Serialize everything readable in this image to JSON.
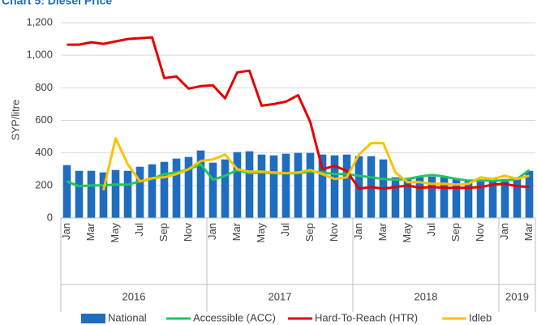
{
  "chart_data": {
    "type": "bar_line",
    "title": "Chart 5: Diesel Price",
    "y_label": "SYP/litre",
    "categories": [
      "Jan",
      null,
      "Mar",
      null,
      "May",
      null,
      "Jul",
      null,
      "Sep",
      null,
      "Nov",
      null,
      "Jan",
      null,
      "Mar",
      null,
      "May",
      null,
      "Jul",
      null,
      "Sep",
      null,
      "Nov",
      null,
      "Jan",
      null,
      "Mar",
      null,
      "May",
      null,
      "Jul",
      null,
      "Sep",
      null,
      "Nov",
      null,
      "Jan",
      null,
      "Mar"
    ],
    "years": [
      "2016",
      "2017",
      "2018",
      "2019"
    ],
    "ylim": [
      0,
      1200
    ],
    "yticks": [
      0,
      200,
      400,
      600,
      800,
      {
        "value": 1000,
        "label": "1,000"
      },
      {
        "value": 1200,
        "label": "1,200"
      }
    ],
    "grid": true,
    "legend": "bottom",
    "series": [
      {
        "name": "National",
        "kind": "bar",
        "color": "#1f6dbf",
        "values": [
          325,
          290,
          290,
          280,
          295,
          290,
          315,
          330,
          345,
          365,
          375,
          415,
          340,
          360,
          405,
          410,
          390,
          385,
          395,
          400,
          400,
          390,
          385,
          390,
          380,
          380,
          360,
          250,
          240,
          250,
          255,
          250,
          240,
          235,
          230,
          240,
          240,
          250,
          290
        ]
      },
      {
        "name": "Accessible (ACC)",
        "kind": "line",
        "color": "#22c55e",
        "values": [
          225,
          195,
          200,
          200,
          205,
          205,
          225,
          240,
          270,
          280,
          300,
          330,
          235,
          260,
          295,
          275,
          280,
          275,
          275,
          275,
          285,
          280,
          270,
          270,
          260,
          250,
          240,
          235,
          240,
          255,
          265,
          255,
          240,
          230,
          230,
          230,
          230,
          240,
          295
        ]
      },
      {
        "name": "Hard-To-Reach (HTR)",
        "kind": "line",
        "color": "#e60000",
        "values": [
          1065,
          1065,
          1080,
          1070,
          1085,
          1100,
          1105,
          1110,
          860,
          870,
          795,
          810,
          815,
          735,
          895,
          905,
          690,
          700,
          715,
          755,
          590,
          300,
          320,
          290,
          180,
          190,
          180,
          190,
          200,
          185,
          190,
          185,
          185,
          185,
          190,
          205,
          210,
          195,
          190
        ]
      },
      {
        "name": "Idleb",
        "kind": "line",
        "color": "#ffc000",
        "values": [
          null,
          null,
          null,
          170,
          490,
          330,
          225,
          245,
          250,
          270,
          300,
          350,
          360,
          390,
          300,
          285,
          285,
          280,
          275,
          280,
          295,
          270,
          240,
          250,
          390,
          460,
          460,
          280,
          220,
          220,
          210,
          210,
          205,
          210,
          250,
          240,
          260,
          240,
          260
        ]
      }
    ]
  }
}
